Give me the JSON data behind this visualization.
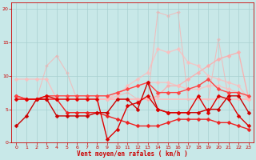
{
  "bg_color": "#c8e8e8",
  "grid_color": "#a8d0d0",
  "xlabel": "Vent moyen/en rafales ( km/h )",
  "xlim": [
    -0.5,
    23.5
  ],
  "ylim": [
    0,
    21
  ],
  "yticks": [
    0,
    5,
    10,
    15,
    20
  ],
  "xticks": [
    0,
    1,
    2,
    3,
    4,
    5,
    6,
    7,
    8,
    9,
    10,
    11,
    12,
    13,
    14,
    15,
    16,
    17,
    18,
    19,
    20,
    21,
    22,
    23
  ],
  "lines": [
    {
      "y": [
        6.5,
        6.5,
        6.5,
        6.5,
        6.5,
        6.5,
        6.5,
        6.5,
        6.5,
        6.5,
        6.5,
        6.5,
        6.5,
        6.5,
        7.0,
        8.5,
        8.5,
        9.5,
        10.5,
        11.5,
        12.5,
        13.0,
        13.5,
        6.5
      ],
      "color": "#ffaaaa",
      "alpha": 0.85,
      "lw": 1.0,
      "marker": "D",
      "ms": 2.5,
      "zorder": 1
    },
    {
      "y": [
        6.5,
        6.5,
        6.5,
        6.5,
        6.5,
        6.5,
        6.5,
        6.5,
        6.5,
        6.5,
        7.0,
        8.5,
        9.5,
        10.5,
        14.0,
        13.5,
        14.0,
        12.0,
        11.5,
        10.0,
        9.5,
        9.0,
        8.5,
        6.5
      ],
      "color": "#ffbbbb",
      "alpha": 0.75,
      "lw": 1.0,
      "marker": "D",
      "ms": 2.5,
      "zorder": 2
    },
    {
      "y": [
        6.5,
        6.5,
        6.5,
        11.5,
        13.0,
        10.5,
        6.5,
        6.5,
        6.5,
        6.5,
        7.0,
        7.5,
        6.5,
        6.5,
        19.5,
        19.0,
        19.5,
        6.5,
        6.5,
        6.5,
        15.5,
        6.5,
        6.5,
        6.5
      ],
      "color": "#ffaaaa",
      "alpha": 0.65,
      "lw": 0.8,
      "marker": "D",
      "ms": 2.0,
      "zorder": 0
    },
    {
      "y": [
        9.5,
        9.5,
        9.5,
        9.5,
        6.5,
        6.5,
        6.5,
        6.5,
        6.5,
        6.5,
        7.5,
        8.0,
        8.5,
        9.0,
        9.0,
        9.0,
        8.5,
        8.0,
        8.0,
        8.5,
        8.5,
        8.0,
        7.5,
        6.5
      ],
      "color": "#ffbbbb",
      "alpha": 0.8,
      "lw": 1.0,
      "marker": "D",
      "ms": 2.5,
      "zorder": 3
    },
    {
      "y": [
        6.5,
        6.5,
        6.5,
        6.5,
        6.5,
        6.5,
        6.5,
        6.5,
        6.5,
        6.5,
        6.5,
        6.5,
        6.5,
        6.5,
        6.5,
        6.5,
        6.5,
        6.5,
        6.5,
        6.5,
        6.5,
        6.5,
        6.5,
        6.5
      ],
      "color": "#ffbbbb",
      "alpha": 0.9,
      "lw": 1.2,
      "marker": null,
      "ms": 0,
      "zorder": 4
    },
    {
      "y": [
        7.0,
        6.5,
        6.5,
        7.0,
        7.0,
        7.0,
        7.0,
        7.0,
        7.0,
        7.0,
        7.5,
        8.0,
        8.5,
        9.0,
        7.5,
        7.5,
        7.5,
        8.0,
        8.5,
        9.5,
        8.0,
        7.5,
        7.5,
        7.0
      ],
      "color": "#ff4444",
      "alpha": 1.0,
      "lw": 1.0,
      "marker": "D",
      "ms": 2.5,
      "zorder": 6
    },
    {
      "y": [
        2.5,
        4.0,
        6.5,
        6.5,
        4.0,
        4.0,
        4.0,
        4.0,
        4.5,
        4.5,
        6.5,
        6.5,
        5.0,
        9.0,
        5.0,
        4.5,
        4.5,
        4.5,
        4.5,
        5.0,
        5.0,
        7.0,
        7.0,
        4.5
      ],
      "color": "#cc0000",
      "alpha": 1.0,
      "lw": 1.0,
      "marker": "D",
      "ms": 2.5,
      "zorder": 7
    },
    {
      "y": [
        6.5,
        6.5,
        6.5,
        7.0,
        6.5,
        6.5,
        6.5,
        6.5,
        6.5,
        0.5,
        2.0,
        5.5,
        6.0,
        7.0,
        5.0,
        4.5,
        4.5,
        4.5,
        7.0,
        4.5,
        7.0,
        6.5,
        4.0,
        2.5
      ],
      "color": "#dd0000",
      "alpha": 1.0,
      "lw": 1.0,
      "marker": "D",
      "ms": 2.5,
      "zorder": 8
    },
    {
      "y": [
        7.0,
        6.5,
        6.5,
        6.5,
        6.5,
        4.5,
        4.5,
        4.5,
        4.5,
        4.0,
        3.5,
        3.0,
        2.5,
        2.5,
        2.5,
        3.0,
        3.5,
        3.5,
        3.5,
        3.5,
        3.0,
        3.0,
        2.5,
        2.0
      ],
      "color": "#ee2222",
      "alpha": 1.0,
      "lw": 1.0,
      "marker": "D",
      "ms": 2.5,
      "zorder": 5
    }
  ]
}
